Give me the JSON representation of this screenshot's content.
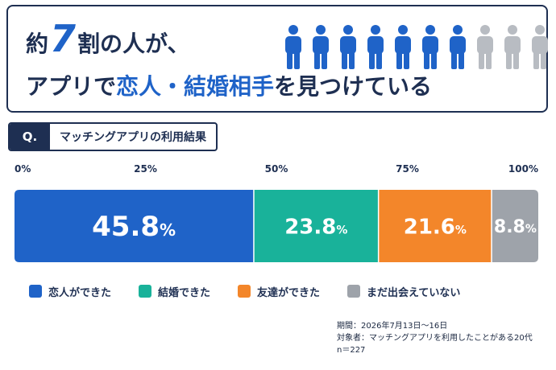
{
  "headline": {
    "line1_prefix": "約",
    "line1_number": "7",
    "line1_suffix": "割の人が、",
    "line2_prefix": "アプリで",
    "line2_highlight": "恋人・結婚相手",
    "line2_suffix": "を見つけている",
    "people_icon": "person-icon",
    "people_total": 10,
    "people_highlighted": 7,
    "people_color_on": "#1f63c8",
    "people_color_off": "#b8bcc2"
  },
  "question": {
    "tag": "Q.",
    "text": "マッチングアプリの利用結果"
  },
  "chart_data": {
    "type": "bar",
    "orientation": "horizontal-stacked",
    "axis_ticks": [
      "0%",
      "25%",
      "50%",
      "75%",
      "100%"
    ],
    "xlim": [
      0,
      100
    ],
    "categories": [
      "恋人ができた",
      "結婚できた",
      "友達ができた",
      "まだ出会えていない"
    ],
    "values": [
      45.8,
      23.8,
      21.6,
      8.8
    ],
    "value_labels": [
      "45.8",
      "23.8",
      "21.6",
      "8.8"
    ],
    "unit": "%",
    "colors": [
      "#1f63c8",
      "#19b29a",
      "#f3862a",
      "#9ea3aa"
    ],
    "grid": false,
    "legend_position": "bottom"
  },
  "notes": {
    "period": "期間：2026年7月13日〜16日",
    "target": "対象者：マッチングアプリを利用したことがある20代",
    "n": "n＝227"
  }
}
